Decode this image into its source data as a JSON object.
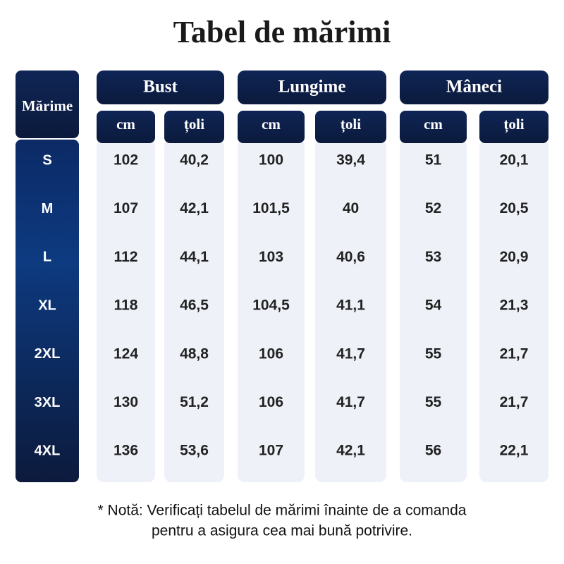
{
  "title": "Tabel de mărimi",
  "table": {
    "size_header": "Mărime",
    "groups": [
      {
        "name": "Bust",
        "units": [
          "cm",
          "țoli"
        ]
      },
      {
        "name": "Lungime",
        "units": [
          "cm",
          "țoli"
        ]
      },
      {
        "name": "Mâneci",
        "units": [
          "cm",
          "țoli"
        ]
      }
    ],
    "rows": [
      {
        "size": "S",
        "values": [
          "102",
          "40,2",
          "100",
          "39,4",
          "51",
          "20,1"
        ]
      },
      {
        "size": "M",
        "values": [
          "107",
          "42,1",
          "101,5",
          "40",
          "52",
          "20,5"
        ]
      },
      {
        "size": "L",
        "values": [
          "112",
          "44,1",
          "103",
          "40,6",
          "53",
          "20,9"
        ]
      },
      {
        "size": "XL",
        "values": [
          "118",
          "46,5",
          "104,5",
          "41,1",
          "54",
          "21,3"
        ]
      },
      {
        "size": "2XL",
        "values": [
          "124",
          "48,8",
          "106",
          "41,7",
          "55",
          "21,7"
        ]
      },
      {
        "size": "3XL",
        "values": [
          "130",
          "51,2",
          "106",
          "41,7",
          "55",
          "21,7"
        ]
      },
      {
        "size": "4XL",
        "values": [
          "136",
          "53,6",
          "107",
          "42,1",
          "56",
          "22,1"
        ]
      }
    ]
  },
  "note": [
    "* Notă: Verificați tabelul de mărimi înainte de a comanda",
    "pentru a asigura cea mai bună potrivire."
  ]
}
